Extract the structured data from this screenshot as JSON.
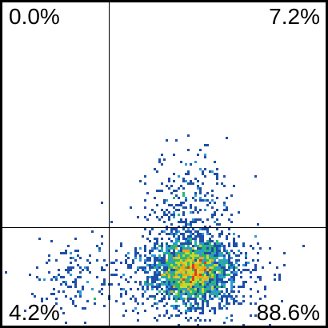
{
  "chart_data": {
    "type": "scatter",
    "title": "",
    "xlabel": "",
    "ylabel": "",
    "grid": false,
    "xlim": [
      0,
      1
    ],
    "ylim": [
      0,
      1
    ],
    "gate": {
      "x": 0.33,
      "y": 0.305
    },
    "quadrants": [
      {
        "name": "top-left",
        "percent": "0.0%"
      },
      {
        "name": "top-right",
        "percent": "7.2%"
      },
      {
        "name": "bottom-left",
        "percent": "4.2%"
      },
      {
        "name": "bottom-right",
        "percent": "88.6%"
      }
    ],
    "density_colors": [
      "#1f4fa8",
      "#2c9ad6",
      "#2bb673",
      "#c6d82e",
      "#f2a516",
      "#e23b1c"
    ],
    "clusters": [
      {
        "name": "bottom-right-core",
        "cx": 0.59,
        "cy": 0.17,
        "sx": 0.055,
        "sy": 0.045,
        "points": 1800,
        "peak": "hot"
      },
      {
        "name": "bottom-right-spread",
        "cx": 0.57,
        "cy": 0.16,
        "sx": 0.11,
        "sy": 0.07,
        "points": 900,
        "peak": "cool"
      },
      {
        "name": "top-right-tail",
        "cx": 0.58,
        "cy": 0.39,
        "sx": 0.06,
        "sy": 0.08,
        "points": 260,
        "peak": "cool"
      },
      {
        "name": "bottom-left",
        "cx": 0.22,
        "cy": 0.15,
        "sx": 0.07,
        "sy": 0.06,
        "points": 130,
        "peak": "cool"
      }
    ]
  }
}
